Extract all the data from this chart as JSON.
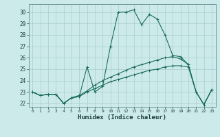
{
  "xlabel": "Humidex (Indice chaleur)",
  "ylabel": "",
  "bg_color": "#cceaea",
  "grid_color": "#aacccc",
  "line_color": "#1a6b5a",
  "xlim": [
    -0.5,
    23.5
  ],
  "ylim": [
    21.7,
    30.7
  ],
  "yticks": [
    22,
    23,
    24,
    25,
    26,
    27,
    28,
    29,
    30
  ],
  "xticks": [
    0,
    1,
    2,
    3,
    4,
    5,
    6,
    7,
    8,
    9,
    10,
    11,
    12,
    13,
    14,
    15,
    16,
    17,
    18,
    19,
    20,
    21,
    22,
    23
  ],
  "line1_x": [
    0,
    1,
    2,
    3,
    4,
    5,
    6,
    7,
    8,
    9,
    10,
    11,
    12,
    13,
    14,
    15,
    16,
    17,
    18,
    19,
    20,
    21,
    22,
    23
  ],
  "line1_y": [
    23.0,
    22.7,
    22.8,
    22.8,
    22.0,
    22.5,
    22.6,
    25.2,
    23.0,
    23.5,
    27.0,
    30.0,
    30.0,
    30.2,
    28.9,
    29.8,
    29.4,
    28.0,
    26.2,
    26.1,
    25.4,
    23.0,
    21.9,
    23.2
  ],
  "line2_x": [
    0,
    1,
    2,
    3,
    4,
    5,
    6,
    7,
    8,
    9,
    10,
    11,
    12,
    13,
    14,
    15,
    16,
    17,
    18,
    19,
    20,
    21,
    22,
    23
  ],
  "line2_y": [
    23.0,
    22.7,
    22.8,
    22.8,
    22.0,
    22.5,
    22.7,
    23.1,
    23.6,
    24.0,
    24.3,
    24.6,
    24.9,
    25.2,
    25.4,
    25.6,
    25.8,
    26.0,
    26.1,
    25.9,
    25.4,
    23.0,
    21.9,
    23.2
  ],
  "line3_x": [
    0,
    1,
    2,
    3,
    4,
    5,
    6,
    7,
    8,
    9,
    10,
    11,
    12,
    13,
    14,
    15,
    16,
    17,
    18,
    19,
    20,
    21,
    22,
    23
  ],
  "line3_y": [
    23.0,
    22.7,
    22.8,
    22.8,
    22.0,
    22.5,
    22.6,
    23.0,
    23.3,
    23.6,
    23.9,
    24.1,
    24.3,
    24.5,
    24.7,
    24.9,
    25.0,
    25.2,
    25.3,
    25.3,
    25.2,
    23.0,
    21.9,
    23.2
  ]
}
